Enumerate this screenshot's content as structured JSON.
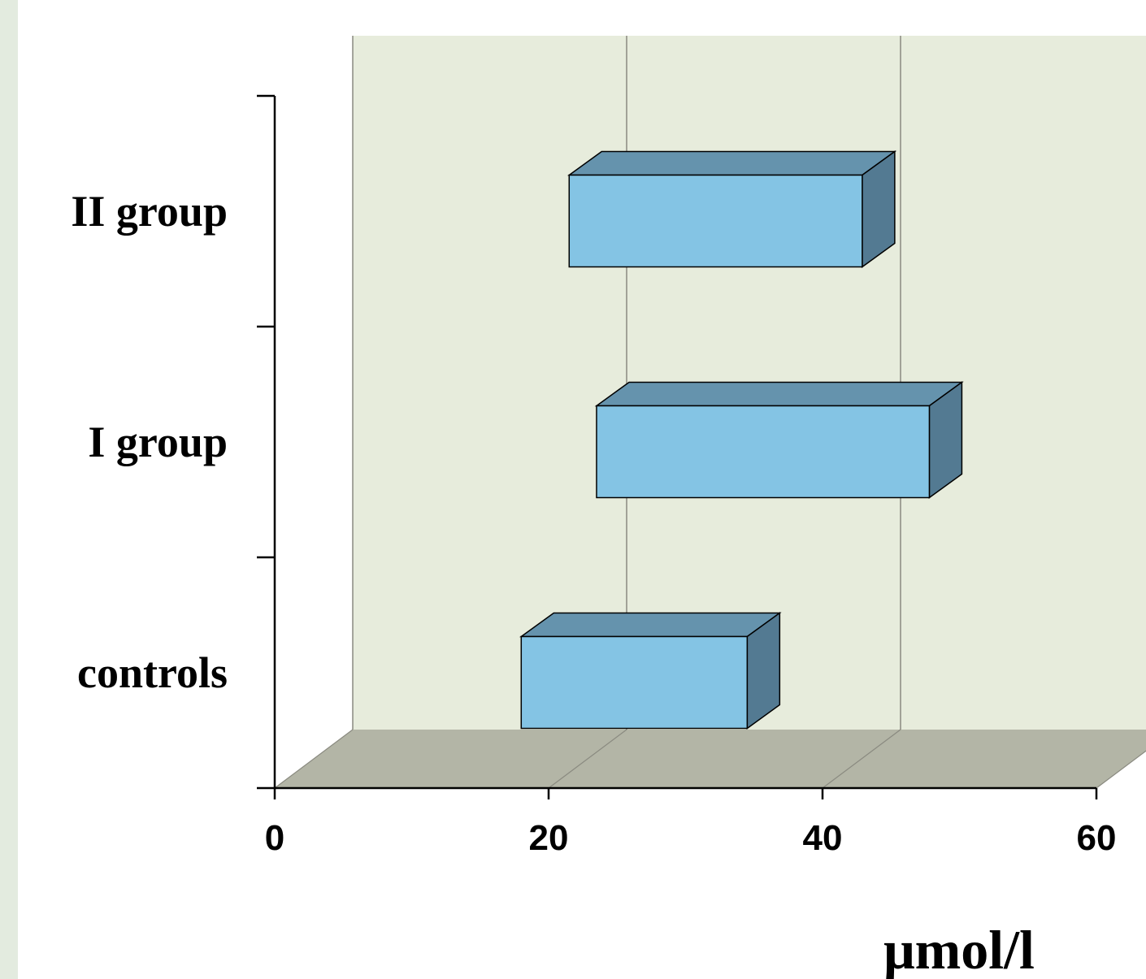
{
  "colors": {
    "page_strip": "#e3ebdf",
    "wall": "#e7ecdc",
    "floor": "#b3b5a6",
    "bar_front": "#84c4e4",
    "bar_top": "#6593ad",
    "bar_side": "#537a92",
    "axis": "#000000",
    "gridline": "#8a8a80"
  },
  "chart_data": {
    "type": "bar",
    "orientation": "horizontal",
    "style": "3d-floating-range",
    "categories": [
      "controls",
      "I group",
      "II group"
    ],
    "series": [
      {
        "ranges": [
          [
            18,
            34.5
          ],
          [
            23.5,
            47.8
          ],
          [
            21.5,
            42.9
          ]
        ]
      }
    ],
    "xlabel": "μmol/l",
    "ylabel": "",
    "xlim": [
      0,
      60
    ],
    "x_ticks": [
      "0",
      "20",
      "40",
      "60"
    ],
    "grid": "vertical",
    "legend": "none"
  }
}
